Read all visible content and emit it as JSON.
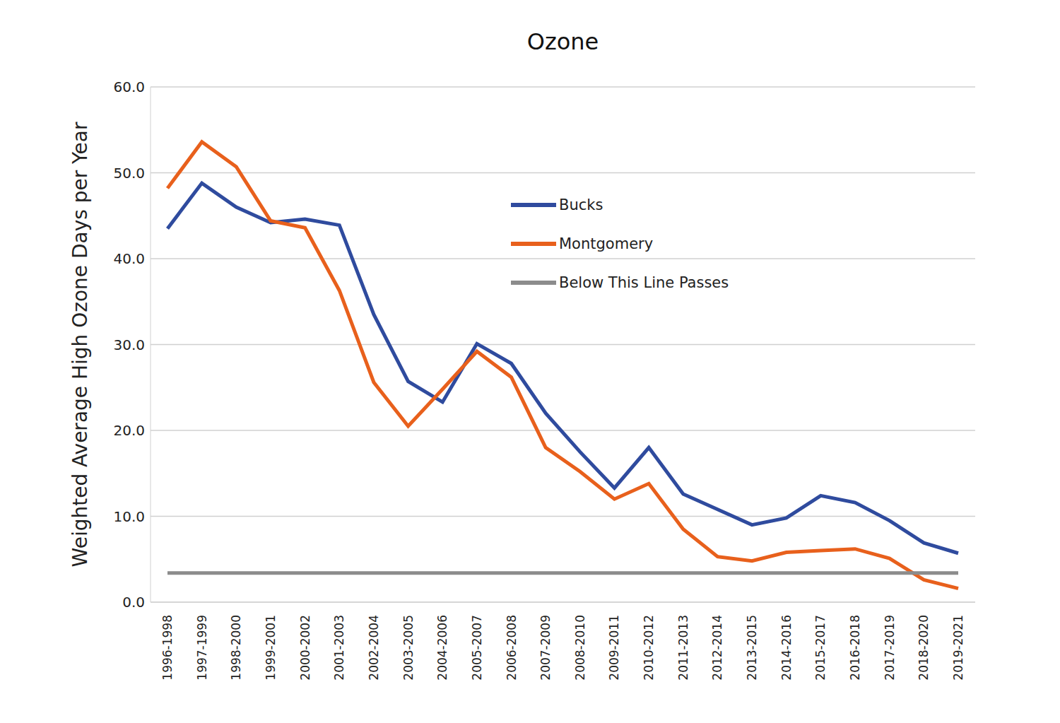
{
  "chart_data": {
    "type": "line",
    "title": "Ozone",
    "y_label": "Weighted Average High Ozone Days per Year",
    "categories": [
      "1996-1998",
      "1997-1999",
      "1998-2000",
      "1999-2001",
      "2000-2002",
      "2001-2003",
      "2002-2004",
      "2003-2005",
      "2004-2006",
      "2005-2007",
      "2006-2008",
      "2007-2009",
      "2008-2010",
      "2009-2011",
      "2010-2012",
      "2011-2013",
      "2012-2014",
      "2013-2015",
      "2014-2016",
      "2015-2017",
      "2016-2018",
      "2017-2019",
      "2018-2020",
      "2019-2021"
    ],
    "series": [
      {
        "name": "Bucks",
        "color": "#2f4b9e",
        "values": [
          43.5,
          48.8,
          46.0,
          44.2,
          44.6,
          43.9,
          33.5,
          25.7,
          23.3,
          30.1,
          27.8,
          22.0,
          17.5,
          13.3,
          18.0,
          12.6,
          10.8,
          9.0,
          9.8,
          12.4,
          11.6,
          9.5,
          6.9,
          5.7
        ]
      },
      {
        "name": "Montgomery",
        "color": "#e8601c",
        "values": [
          48.2,
          53.6,
          50.7,
          44.4,
          43.6,
          36.3,
          25.6,
          20.5,
          24.8,
          29.2,
          26.2,
          18.0,
          15.2,
          12.0,
          13.8,
          8.5,
          5.3,
          4.8,
          5.8,
          6.0,
          6.2,
          5.1,
          2.6,
          1.6
        ]
      },
      {
        "name": "Below This Line Passes",
        "color": "#8c8c8c",
        "values": [
          3.4,
          3.4,
          3.4,
          3.4,
          3.4,
          3.4,
          3.4,
          3.4,
          3.4,
          3.4,
          3.4,
          3.4,
          3.4,
          3.4,
          3.4,
          3.4,
          3.4,
          3.4,
          3.4,
          3.4,
          3.4,
          3.4,
          3.4,
          3.4
        ]
      }
    ],
    "ylim": [
      0,
      60
    ],
    "yticks": [
      {
        "value": 0,
        "label": "0.0"
      },
      {
        "value": 10,
        "label": "10.0"
      },
      {
        "value": 20,
        "label": "20.0"
      },
      {
        "value": 30,
        "label": "30.0"
      },
      {
        "value": 40,
        "label": "40.0"
      },
      {
        "value": 50,
        "label": "50.0"
      },
      {
        "value": 60,
        "label": "60.0"
      }
    ],
    "grid": true
  }
}
